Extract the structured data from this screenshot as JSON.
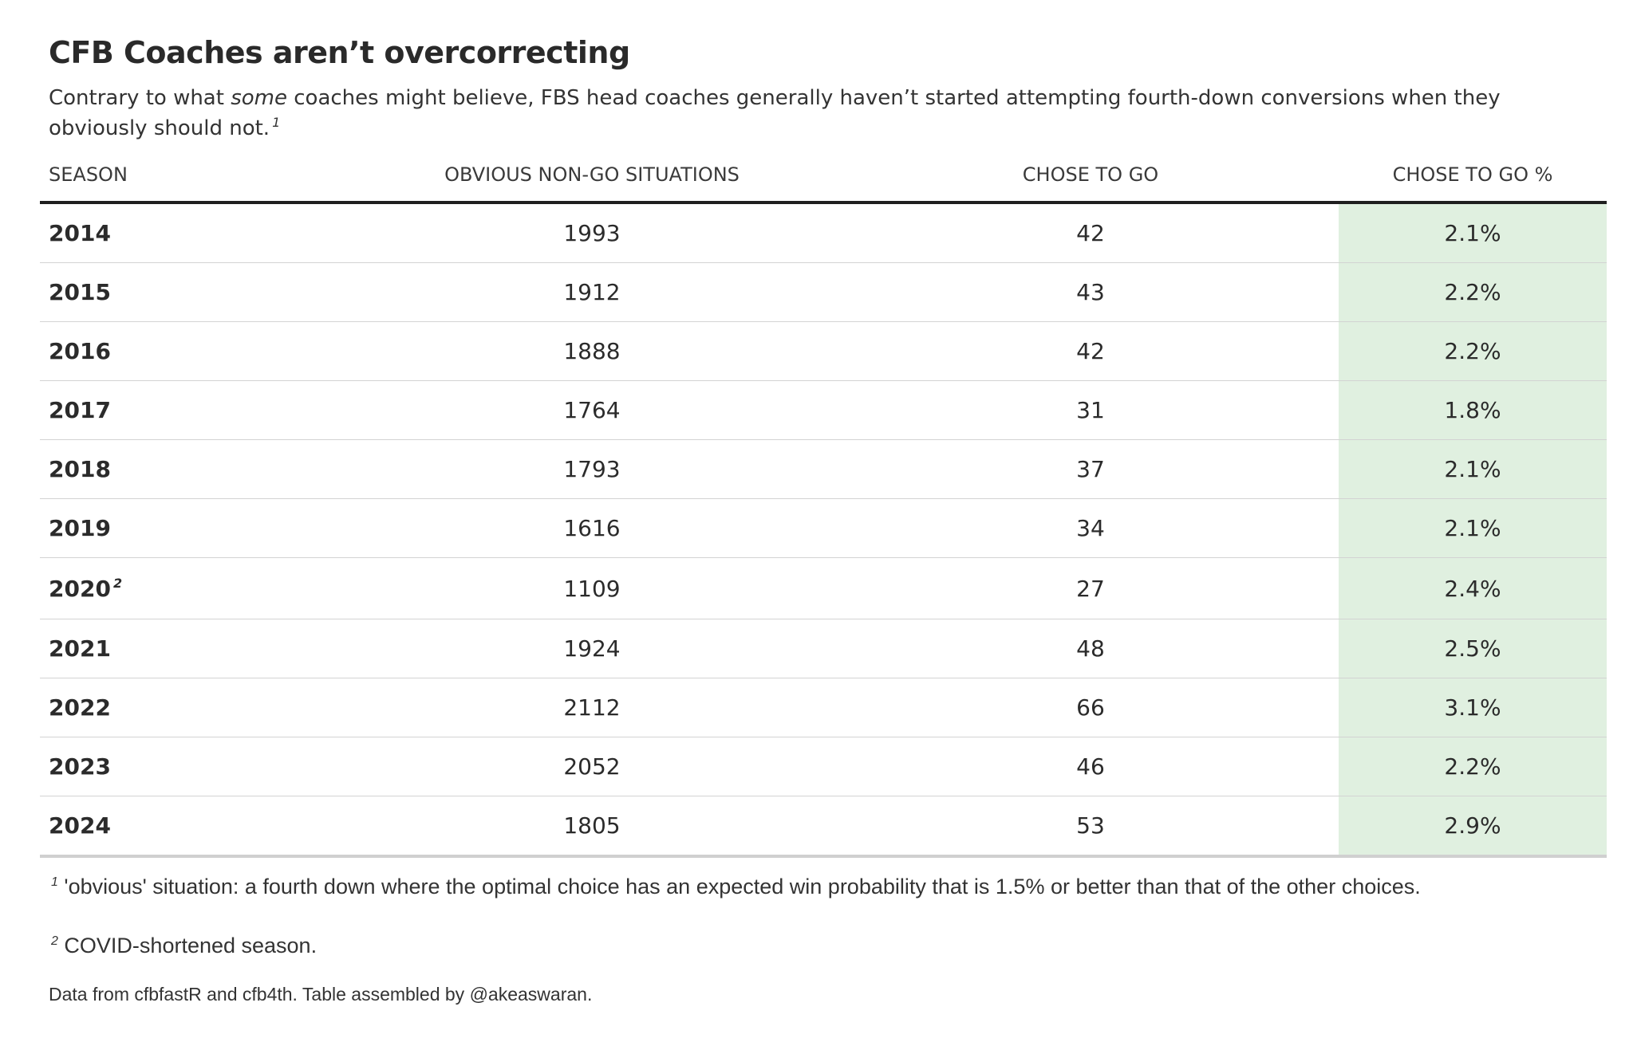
{
  "title": "CFB Coaches aren’t overcorrecting",
  "subtitle": {
    "before": "Contrary to what ",
    "emphasis": "some",
    "after": " coaches might believe, FBS head coaches generally haven’t started attempting fourth-down conversions when they obviously should not.",
    "note_ref": "1"
  },
  "chart_data": {
    "type": "table",
    "columns": [
      "SEASON",
      "OBVIOUS NON-GO SITUATIONS",
      "CHOSE TO GO",
      "CHOSE TO GO %"
    ],
    "rows": [
      {
        "season": "2014",
        "note": "",
        "situations": "1993",
        "chose_to_go": "42",
        "pct": "2.1%"
      },
      {
        "season": "2015",
        "note": "",
        "situations": "1912",
        "chose_to_go": "43",
        "pct": "2.2%"
      },
      {
        "season": "2016",
        "note": "",
        "situations": "1888",
        "chose_to_go": "42",
        "pct": "2.2%"
      },
      {
        "season": "2017",
        "note": "",
        "situations": "1764",
        "chose_to_go": "31",
        "pct": "1.8%"
      },
      {
        "season": "2018",
        "note": "",
        "situations": "1793",
        "chose_to_go": "37",
        "pct": "2.1%"
      },
      {
        "season": "2019",
        "note": "",
        "situations": "1616",
        "chose_to_go": "34",
        "pct": "2.1%"
      },
      {
        "season": "2020",
        "note": "2",
        "situations": "1109",
        "chose_to_go": "27",
        "pct": "2.4%"
      },
      {
        "season": "2021",
        "note": "",
        "situations": "1924",
        "chose_to_go": "48",
        "pct": "2.5%"
      },
      {
        "season": "2022",
        "note": "",
        "situations": "2112",
        "chose_to_go": "66",
        "pct": "3.1%"
      },
      {
        "season": "2023",
        "note": "",
        "situations": "2052",
        "chose_to_go": "46",
        "pct": "2.2%"
      },
      {
        "season": "2024",
        "note": "",
        "situations": "1805",
        "chose_to_go": "53",
        "pct": "2.9%"
      }
    ],
    "highlight_color": "#e0f0e0"
  },
  "footnotes": [
    {
      "ref": "1",
      "text": "'obvious' situation: a fourth down where the optimal choice has an expected win probability that is 1.5% or better than that of the other choices."
    },
    {
      "ref": "2",
      "text": "COVID-shortened season."
    }
  ],
  "source": "Data from cfbfastR and cfb4th. Table assembled by @akeaswaran."
}
